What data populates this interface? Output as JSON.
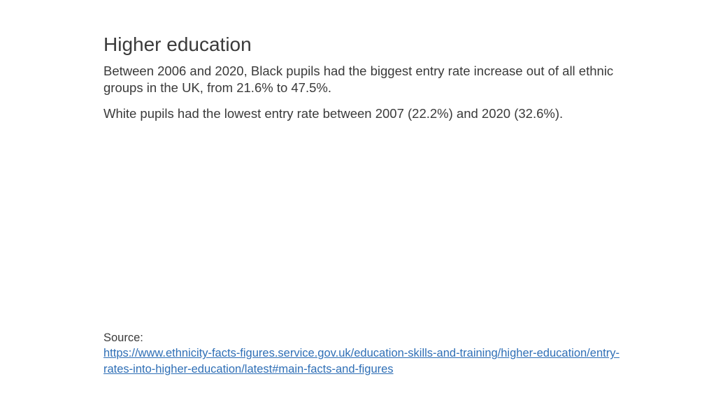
{
  "title": "Higher education",
  "paragraphs": [
    "Between 2006 and 2020, Black pupils had the biggest entry rate increase out of all ethnic groups in the UK, from 21.6% to 47.5%.",
    "White pupils had the lowest entry rate between 2007 (22.2%) and 2020 (32.6%)."
  ],
  "source": {
    "label": "Source:",
    "link_text": "https://www.ethnicity-facts-figures.service.gov.uk/education-skills-and-training/higher-education/entry-rates-into-higher-education/latest#main-facts-and-figures"
  },
  "colors": {
    "text": "#3a3a3a",
    "link": "#2f6fb6",
    "background": "#ffffff"
  },
  "typography": {
    "title_fontsize": 28,
    "body_fontsize": 18.5,
    "source_fontsize": 16.5,
    "font_family": "Arial"
  }
}
